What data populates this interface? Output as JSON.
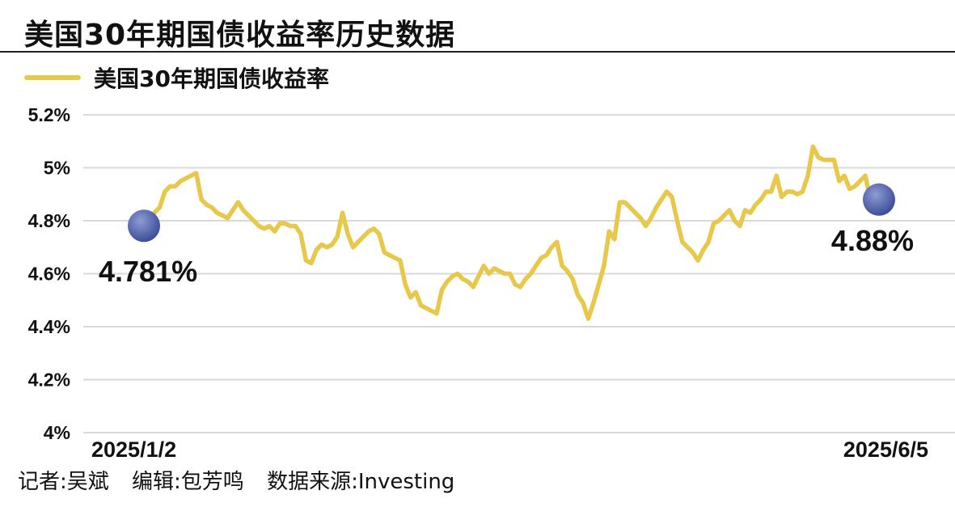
{
  "header": {
    "title": "美国30年期国债收益率历史数据"
  },
  "footer": {
    "reporter": "记者:吴斌",
    "editor": "编辑:包芳鸣",
    "source": "数据来源:Investing"
  },
  "colors": {
    "line": "#E8C84A",
    "marker": "#3D4E9A",
    "grid": "#D9D9D9",
    "rule": "#222222"
  },
  "chart_data": {
    "type": "line",
    "ylim": [
      4.0,
      5.2
    ],
    "yticks": [
      "4%",
      "4.2%",
      "4.4%",
      "4.6%",
      "4.8%",
      "5%",
      "5.2%"
    ],
    "ytick_values": [
      4.0,
      4.2,
      4.4,
      4.6,
      4.8,
      5.0,
      5.2
    ],
    "x_tick_labels": [
      "2025/1/2",
      "2025/6/5"
    ],
    "grid": "horizontal",
    "legend_placement": "top-left",
    "series": [
      {
        "name": "美国30年期国债收益率",
        "color": "#E8C84A",
        "values": [
          4.781,
          4.81,
          4.83,
          4.85,
          4.91,
          4.93,
          4.93,
          4.95,
          4.96,
          4.97,
          4.98,
          4.88,
          4.86,
          4.85,
          4.83,
          4.82,
          4.81,
          4.84,
          4.87,
          4.84,
          4.82,
          4.8,
          4.78,
          4.77,
          4.78,
          4.76,
          4.79,
          4.79,
          4.78,
          4.78,
          4.75,
          4.65,
          4.64,
          4.69,
          4.71,
          4.7,
          4.71,
          4.74,
          4.83,
          4.75,
          4.7,
          4.72,
          4.74,
          4.76,
          4.77,
          4.75,
          4.68,
          4.67,
          4.66,
          4.65,
          4.56,
          4.51,
          4.53,
          4.48,
          4.47,
          4.46,
          4.45,
          4.54,
          4.57,
          4.59,
          4.6,
          4.58,
          4.57,
          4.55,
          4.59,
          4.63,
          4.6,
          4.62,
          4.61,
          4.6,
          4.6,
          4.56,
          4.55,
          4.58,
          4.6,
          4.63,
          4.66,
          4.67,
          4.7,
          4.72,
          4.63,
          4.61,
          4.58,
          4.52,
          4.49,
          4.43,
          4.49,
          4.56,
          4.63,
          4.76,
          4.73,
          4.87,
          4.87,
          4.85,
          4.83,
          4.81,
          4.78,
          4.81,
          4.85,
          4.88,
          4.91,
          4.89,
          4.8,
          4.72,
          4.7,
          4.68,
          4.65,
          4.69,
          4.72,
          4.79,
          4.8,
          4.82,
          4.84,
          4.8,
          4.78,
          4.84,
          4.83,
          4.86,
          4.88,
          4.91,
          4.91,
          4.97,
          4.89,
          4.91,
          4.91,
          4.9,
          4.91,
          4.97,
          5.08,
          5.04,
          5.03,
          5.03,
          5.03,
          4.95,
          4.97,
          4.92,
          4.93,
          4.95,
          4.97,
          4.88,
          4.88
        ]
      }
    ],
    "annotations": [
      {
        "label": "4.781%",
        "point": "start",
        "value": 4.781
      },
      {
        "label": "4.88%",
        "point": "end",
        "value": 4.88
      }
    ]
  }
}
